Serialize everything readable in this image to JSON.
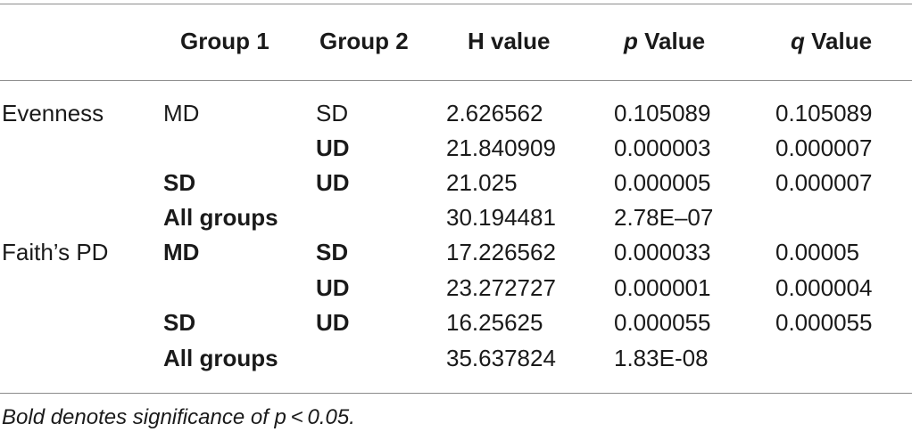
{
  "table": {
    "headers": {
      "group1": "Group 1",
      "group2": "Group 2",
      "h": "H value",
      "p_letter": "p",
      "p_rest": " Value",
      "q_letter": "q",
      "q_rest": " Value"
    },
    "rows": [
      {
        "metric": "Evenness",
        "group1": "MD",
        "group1_bold": false,
        "group2": "SD",
        "group2_bold": false,
        "h": "2.626562",
        "p": "0.105089",
        "q": "0.105089"
      },
      {
        "metric": "",
        "group1": "",
        "group1_bold": false,
        "group2": "UD",
        "group2_bold": true,
        "h": "21.840909",
        "p": "0.000003",
        "q": "0.000007"
      },
      {
        "metric": "",
        "group1": "SD",
        "group1_bold": true,
        "group2": "UD",
        "group2_bold": true,
        "h": "21.025",
        "p": "0.000005",
        "q": "0.000007"
      },
      {
        "metric": "",
        "group1": "All groups",
        "group1_bold": true,
        "group2": "",
        "group2_bold": false,
        "h": "30.194481",
        "p": "2.78E–07",
        "q": ""
      },
      {
        "metric": "Faith’s PD",
        "group1": "MD",
        "group1_bold": true,
        "group2": "SD",
        "group2_bold": true,
        "h": "17.226562",
        "p": "0.000033",
        "q": "0.00005"
      },
      {
        "metric": "",
        "group1": "",
        "group1_bold": false,
        "group2": "UD",
        "group2_bold": true,
        "h": "23.272727",
        "p": "0.000001",
        "q": "0.000004"
      },
      {
        "metric": "",
        "group1": "SD",
        "group1_bold": true,
        "group2": "UD",
        "group2_bold": true,
        "h": "16.25625",
        "p": "0.000055",
        "q": "0.000055"
      },
      {
        "metric": "",
        "group1": "All groups",
        "group1_bold": true,
        "group2": "",
        "group2_bold": false,
        "h": "35.637824",
        "p": "1.83E-08",
        "q": ""
      }
    ]
  },
  "footnote": {
    "prefix": "Bold denotes significance of ",
    "expr": "p < 0.05."
  }
}
